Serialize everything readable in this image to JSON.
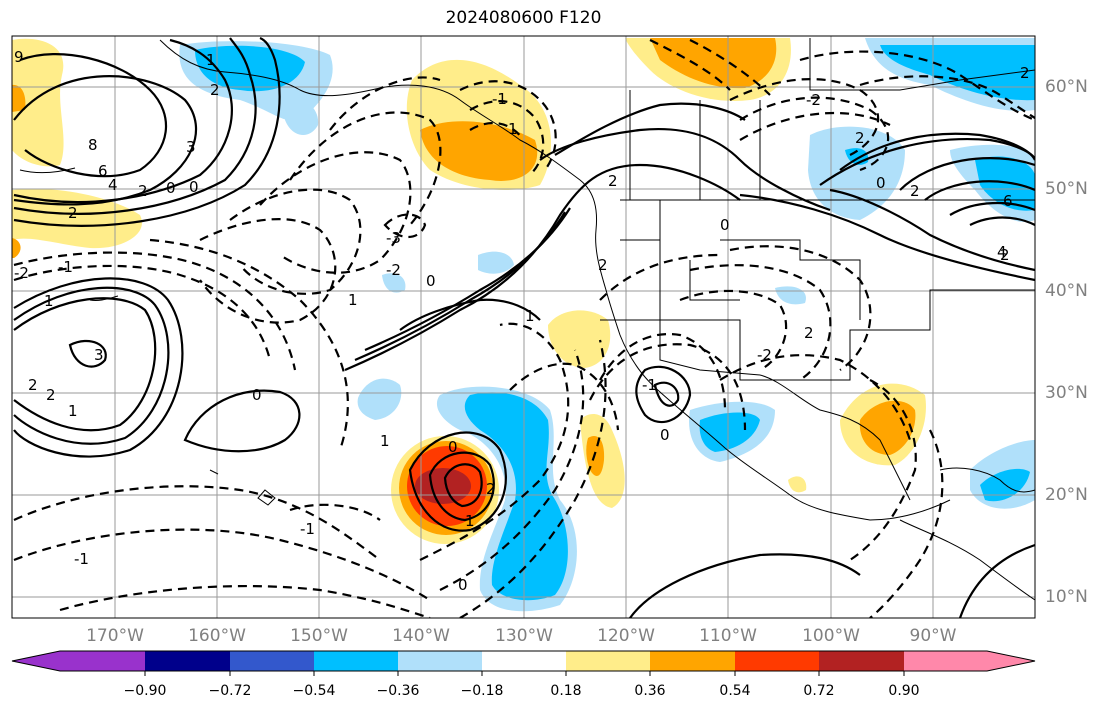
{
  "title": "2024080600 F120",
  "map": {
    "region": "North Pacific and North America",
    "latitude_labels": [
      "60°N",
      "50°N",
      "40°N",
      "30°N",
      "20°N",
      "10°N"
    ],
    "longitude_labels": [
      "170°W",
      "160°W",
      "150°W",
      "140°W",
      "130°W",
      "120°W",
      "110°W",
      "100°W",
      "90°W"
    ],
    "contour_labels": [
      "9",
      "8",
      "6",
      "4",
      "2",
      "0",
      "3",
      "2",
      "-2",
      "1",
      "-3",
      "-2",
      "-1",
      "0",
      "-1",
      "2",
      "0",
      "3",
      "2",
      "1",
      "2",
      "-2",
      "2",
      "0",
      "2",
      "1",
      "-1",
      "2",
      "0",
      "0",
      "2",
      "-2",
      "2",
      "1",
      "0",
      "-1",
      "1",
      "-1",
      "0",
      "1",
      "1",
      "2",
      "0",
      "1",
      "2",
      "2",
      "6",
      "4"
    ]
  },
  "colorbar": {
    "ticks": [
      "−0.90",
      "−0.72",
      "−0.54",
      "−0.36",
      "−0.18",
      "0.18",
      "0.36",
      "0.54",
      "0.72",
      "0.90"
    ],
    "colors": [
      "#9932cc",
      "#00008b",
      "#3358cc",
      "#00bfff",
      "#b0e0fa",
      "#ffffff",
      "#ffed8a",
      "#ffa500",
      "#ff3a00",
      "#b22222",
      "#ff88aa"
    ]
  }
}
